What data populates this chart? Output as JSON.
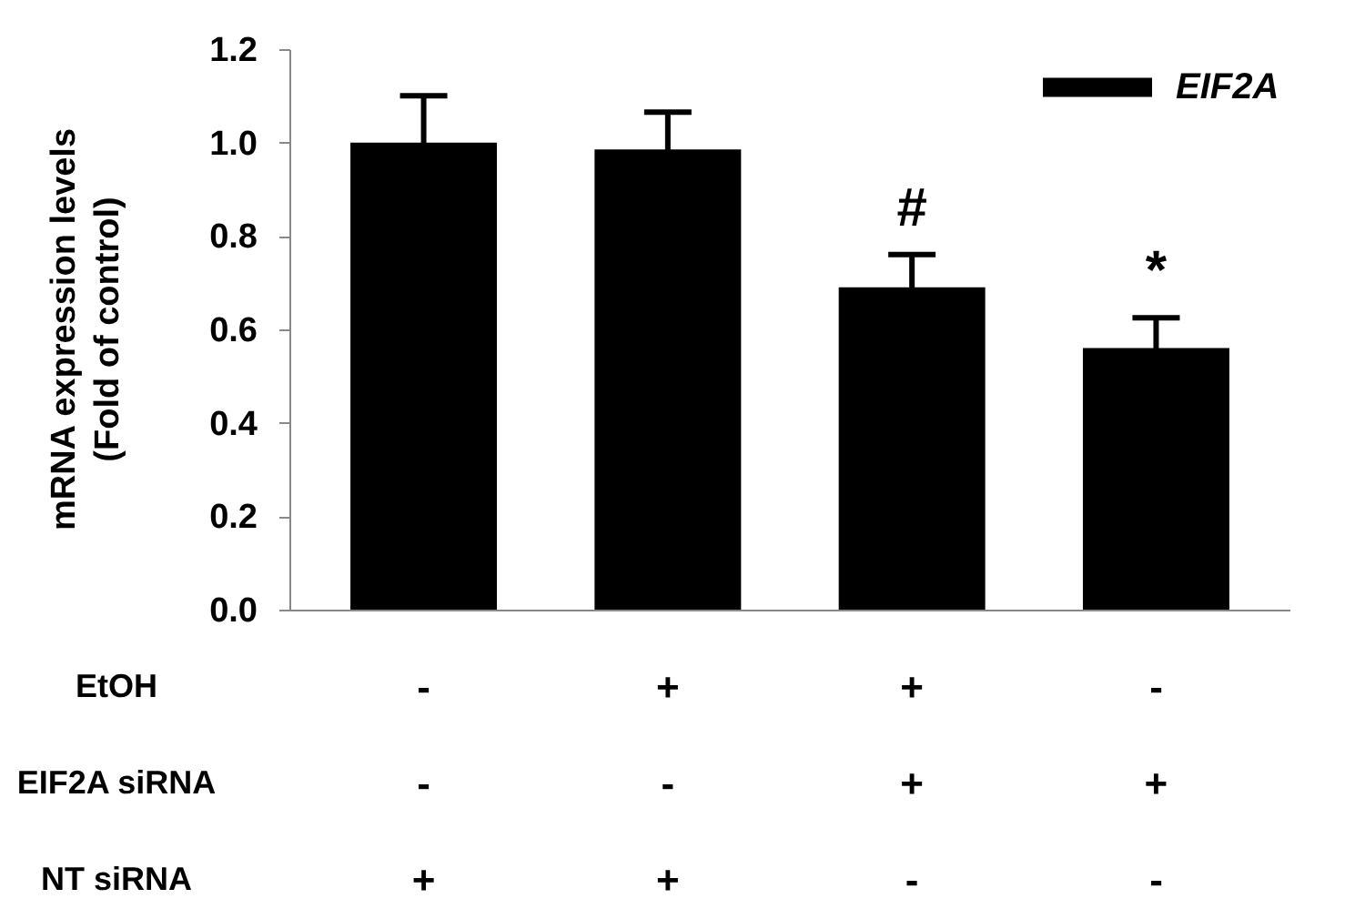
{
  "chart_data": {
    "type": "bar",
    "ylabel": "mRNA expression levels\n(Fold of control)",
    "categories": [
      "-\n-\n+",
      "+\n-\n+",
      "+\n+\n-",
      "-\n+\n-"
    ],
    "series": [
      {
        "name": "EIF2A",
        "color": "#000000",
        "values": [
          1.0,
          0.985,
          0.69,
          0.56
        ],
        "errors": [
          0.1,
          0.08,
          0.07,
          0.065
        ],
        "value_labels": [
          null,
          null,
          "#",
          "*"
        ]
      }
    ],
    "ylim": [
      0,
      1.2
    ],
    "yticks": [
      {
        "value": 0,
        "label": "0.0"
      },
      {
        "value": 0.2,
        "label": "0.2"
      },
      {
        "value": 0.4,
        "label": "0.4"
      },
      {
        "value": 0.6,
        "label": "0.6"
      },
      {
        "value": 0.8,
        "label": "0.8"
      },
      {
        "value": 1,
        "label": "1.0"
      },
      {
        "value": 1.2,
        "label": "1.2"
      }
    ],
    "annotations": [
      "EtOH",
      "EIF2A siRNA",
      "NT siRNA"
    ],
    "legend": "top right",
    "grid": false
  }
}
